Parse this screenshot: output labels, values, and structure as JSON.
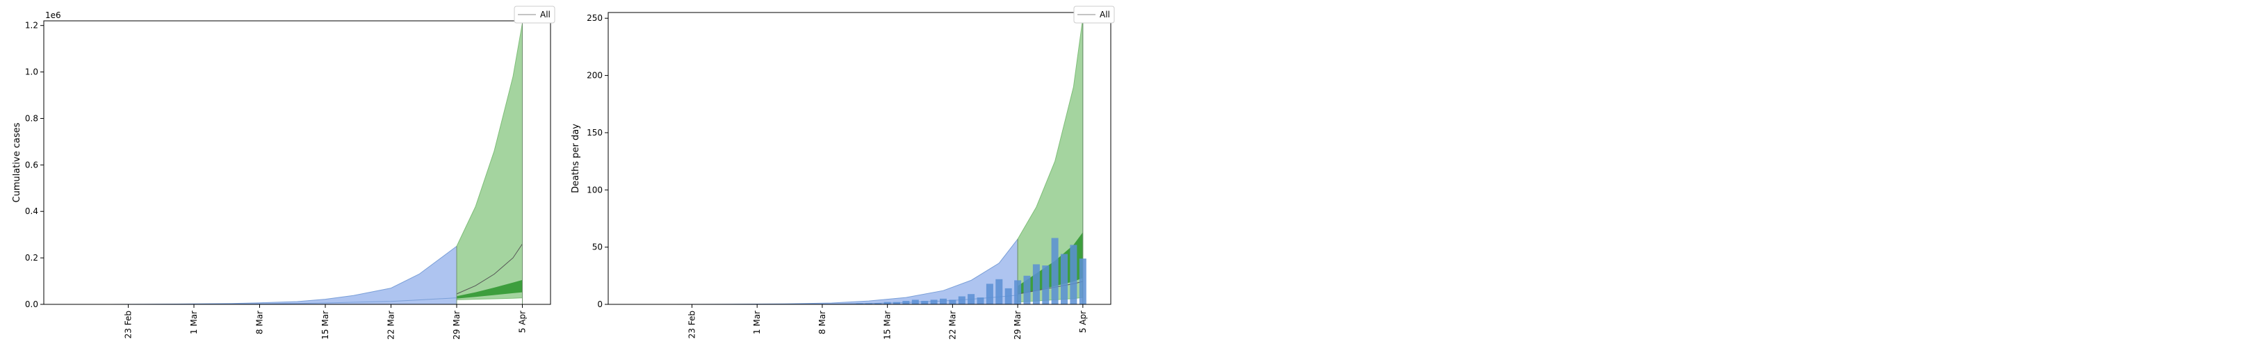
{
  "chart_data": [
    {
      "type": "area",
      "ylabel": "Cumulative cases",
      "offset_label": "1e6",
      "ylim": [
        0,
        1.22
      ],
      "yticks": [
        "0.0",
        "0.2",
        "0.4",
        "0.6",
        "0.8",
        "1.0",
        "1.2"
      ],
      "xlim": [
        "2020-02-14",
        "2020-04-08"
      ],
      "xticks": [
        {
          "date": "2020-02-23",
          "label": "23 Feb"
        },
        {
          "date": "2020-03-01",
          "label": "1 Mar"
        },
        {
          "date": "2020-03-08",
          "label": "8 Mar"
        },
        {
          "date": "2020-03-15",
          "label": "15 Mar"
        },
        {
          "date": "2020-03-22",
          "label": "22 Mar"
        },
        {
          "date": "2020-03-29",
          "label": "29 Mar"
        },
        {
          "date": "2020-04-05",
          "label": "5 Apr"
        }
      ],
      "legend": {
        "entries": [
          "All"
        ],
        "placement": "top-right"
      },
      "colors": {
        "fit": "#aec4f0",
        "fit_edge": "#7a9fd8",
        "forecast_outer": "#a4d49f",
        "forecast_inner": "#3d9e3d",
        "median": "#555555"
      },
      "series": [
        {
          "band": "fit_interval",
          "x": [
            "2020-02-21",
            "2020-02-25",
            "2020-03-01",
            "2020-03-05",
            "2020-03-08",
            "2020-03-12",
            "2020-03-15",
            "2020-03-18",
            "2020-03-22",
            "2020-03-25",
            "2020-03-29"
          ],
          "lower": [
            0,
            0,
            0,
            0,
            0,
            0,
            0,
            0,
            0,
            0,
            0
          ],
          "upper": [
            0,
            0.001,
            0.002,
            0.004,
            0.007,
            0.012,
            0.022,
            0.038,
            0.07,
            0.13,
            0.25
          ],
          "median": [
            0,
            0,
            0.0005,
            0.001,
            0.002,
            0.004,
            0.006,
            0.009,
            0.013,
            0.019,
            0.028
          ]
        },
        {
          "band": "forecast_outer",
          "x": [
            "2020-03-29",
            "2020-03-31",
            "2020-04-02",
            "2020-04-04",
            "2020-04-05"
          ],
          "lower": [
            0.02,
            0.022,
            0.024,
            0.026,
            0.028
          ],
          "upper": [
            0.25,
            0.42,
            0.66,
            0.98,
            1.21
          ]
        },
        {
          "band": "forecast_inner",
          "x": [
            "2020-03-29",
            "2020-03-31",
            "2020-04-02",
            "2020-04-04",
            "2020-04-05"
          ],
          "lower": [
            0.025,
            0.032,
            0.04,
            0.048,
            0.052
          ],
          "upper": [
            0.035,
            0.052,
            0.072,
            0.094,
            0.105
          ]
        },
        {
          "band": "median_forecast",
          "x": [
            "2020-03-29",
            "2020-03-31",
            "2020-04-02",
            "2020-04-04",
            "2020-04-05"
          ],
          "values": [
            0.045,
            0.08,
            0.13,
            0.2,
            0.26
          ]
        }
      ]
    },
    {
      "type": "area",
      "ylabel": "Deaths per day",
      "ylim": [
        0,
        255
      ],
      "yticks": [
        "0",
        "50",
        "100",
        "150",
        "200",
        "250"
      ],
      "xlim": [
        "2020-02-14",
        "2020-04-08"
      ],
      "xticks": [
        {
          "date": "2020-02-23",
          "label": "23 Feb"
        },
        {
          "date": "2020-03-01",
          "label": "1 Mar"
        },
        {
          "date": "2020-03-08",
          "label": "8 Mar"
        },
        {
          "date": "2020-03-15",
          "label": "15 Mar"
        },
        {
          "date": "2020-03-22",
          "label": "22 Mar"
        },
        {
          "date": "2020-03-29",
          "label": "29 Mar"
        },
        {
          "date": "2020-04-05",
          "label": "5 Apr"
        }
      ],
      "legend": {
        "entries": [
          "All"
        ],
        "placement": "top-right"
      },
      "colors": {
        "fit": "#aec4f0",
        "fit_edge": "#7a9fd8",
        "forecast_outer": "#a4d49f",
        "forecast_inner": "#3d9e3d",
        "median": "#555555",
        "bars": "#5b8fd4"
      },
      "bars": {
        "x": [
          "2020-03-11",
          "2020-03-12",
          "2020-03-13",
          "2020-03-14",
          "2020-03-15",
          "2020-03-16",
          "2020-03-17",
          "2020-03-18",
          "2020-03-19",
          "2020-03-20",
          "2020-03-21",
          "2020-03-22",
          "2020-03-23",
          "2020-03-24",
          "2020-03-25",
          "2020-03-26",
          "2020-03-27",
          "2020-03-28",
          "2020-03-29",
          "2020-03-30",
          "2020-03-31",
          "2020-04-01",
          "2020-04-02",
          "2020-04-03",
          "2020-04-04",
          "2020-04-05"
        ],
        "values": [
          0,
          1,
          1,
          1,
          2,
          2,
          3,
          4,
          3,
          4,
          5,
          4,
          7,
          9,
          6,
          18,
          22,
          14,
          21,
          25,
          35,
          34,
          58,
          44,
          52,
          40
        ]
      },
      "series": [
        {
          "band": "fit_interval",
          "x": [
            "2020-02-21",
            "2020-02-27",
            "2020-03-04",
            "2020-03-09",
            "2020-03-13",
            "2020-03-17",
            "2020-03-21",
            "2020-03-24",
            "2020-03-27",
            "2020-03-29"
          ],
          "lower": [
            0,
            0,
            0,
            0,
            0,
            0,
            0,
            0,
            0,
            0
          ],
          "upper": [
            0,
            0.2,
            0.5,
            1.2,
            3,
            6,
            12,
            21,
            36,
            57
          ],
          "median": [
            0,
            0,
            0.1,
            0.3,
            0.8,
            1.6,
            3,
            4.5,
            6.5,
            8
          ]
        },
        {
          "band": "forecast_outer",
          "x": [
            "2020-03-29",
            "2020-03-31",
            "2020-04-02",
            "2020-04-04",
            "2020-04-05"
          ],
          "lower": [
            2,
            3,
            4,
            5,
            6
          ],
          "upper": [
            57,
            85,
            125,
            190,
            250
          ]
        },
        {
          "band": "forecast_inner",
          "x": [
            "2020-03-29",
            "2020-03-31",
            "2020-04-02",
            "2020-04-04",
            "2020-04-05"
          ],
          "lower": [
            9,
            12,
            16,
            20,
            23
          ],
          "upper": [
            16,
            27,
            38,
            52,
            63
          ]
        },
        {
          "band": "median_forecast",
          "x": [
            "2020-03-29",
            "2020-03-31",
            "2020-04-02",
            "2020-04-04",
            "2020-04-05"
          ],
          "values": [
            9,
            12,
            15,
            18,
            20
          ]
        }
      ]
    }
  ]
}
